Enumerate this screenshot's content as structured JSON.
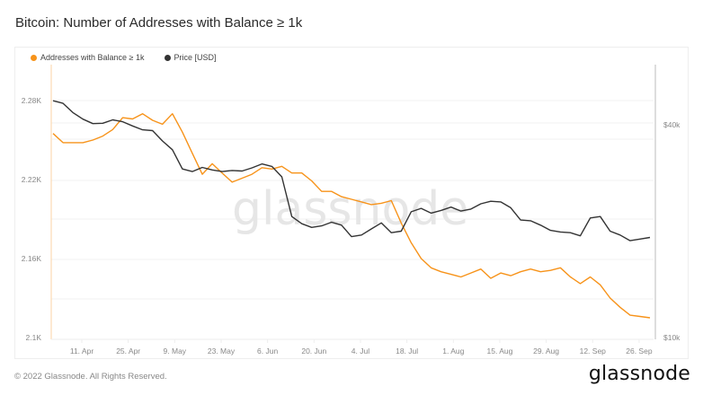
{
  "header": {
    "title": "Bitcoin: Number of Addresses with Balance ≥ 1k"
  },
  "legend": [
    {
      "label": "Addresses with Balance ≥ 1k",
      "color": "#f7931a"
    },
    {
      "label": "Price [USD]",
      "color": "#333333"
    }
  ],
  "footer": {
    "copyright": "© 2022 Glassnode. All Rights Reserved.",
    "brand": "glassnode"
  },
  "watermark": "glassnode",
  "chart_data": {
    "type": "line",
    "title": "Bitcoin: Number of Addresses with Balance ≥ 1k",
    "xlabel": "",
    "ylabel": "Addresses with Balance ≥ 1k",
    "y2label": "Price [USD]",
    "x_ticks": [
      "11. Apr",
      "25. Apr",
      "9. May",
      "23. May",
      "6. Jun",
      "20. Jun",
      "4. Jul",
      "18. Jul",
      "1. Aug",
      "15. Aug",
      "29. Aug",
      "12. Sep",
      "26. Sep"
    ],
    "y_ticks": [
      "2.1K",
      "2.16K",
      "2.22K",
      "2.28K"
    ],
    "y_ticks_values": [
      2100,
      2160,
      2220,
      2280
    ],
    "y2_ticks": [
      "$10k",
      "$40k"
    ],
    "y2_ticks_values": [
      10000,
      40000
    ],
    "y2_scale": "log",
    "ylim": [
      2100,
      2280
    ],
    "y2lim": [
      10000,
      40000
    ],
    "grid": true,
    "legend_position": "top-left",
    "x": [
      "2 Apr",
      "5 Apr",
      "8 Apr",
      "11 Apr",
      "14 Apr",
      "17 Apr",
      "20 Apr",
      "23 Apr",
      "26 Apr",
      "29 Apr",
      "2 May",
      "5 May",
      "8 May",
      "11 May",
      "14 May",
      "17 May",
      "20 May",
      "23 May",
      "26 May",
      "29 May",
      "1 Jun",
      "4 Jun",
      "7 Jun",
      "10 Jun",
      "13 Jun",
      "16 Jun",
      "19 Jun",
      "22 Jun",
      "25 Jun",
      "28 Jun",
      "1 Jul",
      "4 Jul",
      "7 Jul",
      "10 Jul",
      "13 Jul",
      "16 Jul",
      "19 Jul",
      "22 Jul",
      "25 Jul",
      "28 Jul",
      "31 Jul",
      "3 Aug",
      "6 Aug",
      "9 Aug",
      "12 Aug",
      "15 Aug",
      "18 Aug",
      "21 Aug",
      "24 Aug",
      "27 Aug",
      "30 Aug",
      "2 Sep",
      "5 Sep",
      "8 Sep",
      "11 Sep",
      "14 Sep",
      "17 Sep",
      "20 Sep",
      "23 Sep",
      "26 Sep",
      "29 Sep"
    ],
    "series": [
      {
        "name": "Addresses with Balance ≥ 1k",
        "axis": "left",
        "color": "#f7931a",
        "values": [
          2255,
          2248,
          2248,
          2248,
          2250,
          2253,
          2258,
          2267,
          2266,
          2270,
          2265,
          2262,
          2270,
          2256,
          2240,
          2224,
          2232,
          2225,
          2218,
          2221,
          2224,
          2229,
          2228,
          2230,
          2225,
          2225,
          2219,
          2211,
          2211,
          2207,
          2205,
          2203,
          2201,
          2202,
          2204,
          2187,
          2172,
          2160,
          2153,
          2150,
          2148,
          2146,
          2149,
          2152,
          2145,
          2149,
          2147,
          2150,
          2152,
          2150,
          2151,
          2153,
          2146,
          2141,
          2146,
          2140,
          2130,
          2123,
          2117,
          2116,
          2115
        ]
      },
      {
        "name": "Price [USD]",
        "axis": "right",
        "color": "#333333",
        "values": [
          46800,
          46000,
          43300,
          41500,
          40300,
          40400,
          41300,
          40800,
          39700,
          38700,
          38500,
          36000,
          34000,
          30000,
          29500,
          30300,
          29800,
          29500,
          29700,
          29600,
          30200,
          31000,
          30500,
          28500,
          22000,
          21000,
          20500,
          20700,
          21200,
          20800,
          19300,
          19500,
          20300,
          21100,
          19800,
          20000,
          22700,
          23200,
          22500,
          22900,
          23400,
          22800,
          23100,
          23900,
          24300,
          24200,
          23300,
          21500,
          21400,
          20800,
          20100,
          19900,
          19800,
          19400,
          21800,
          22000,
          20000,
          19500,
          18800,
          19000,
          19200
        ]
      }
    ]
  }
}
